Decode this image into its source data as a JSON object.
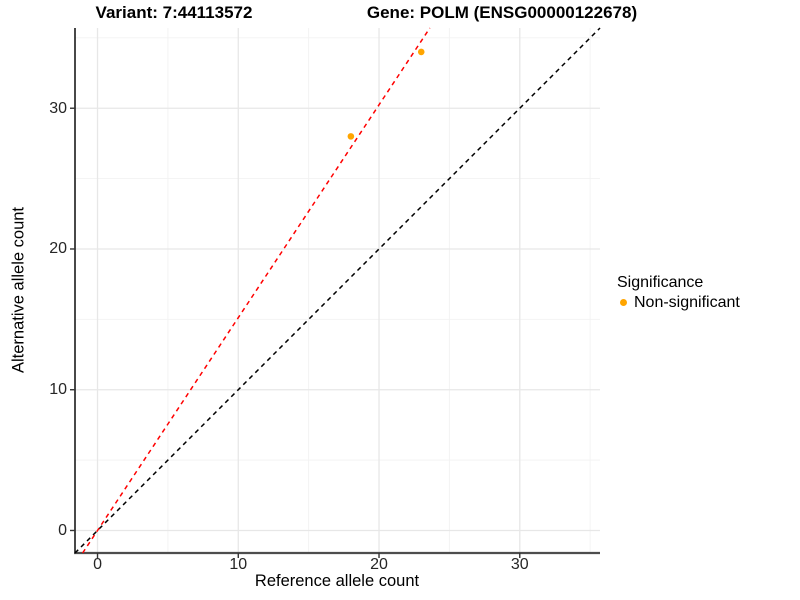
{
  "header": {
    "variant_title": "Variant: 7:44113572",
    "gene_title": "Gene: POLM (ENSG00000122678)"
  },
  "legend": {
    "title": "Significance",
    "items": [
      {
        "label": "Non-significant",
        "color": "#FFA500"
      }
    ]
  },
  "colors": {
    "point_orange": "#FFA500",
    "fit_line_red": "#FF0000",
    "identity_line_black": "#000000",
    "grid_major": "#e7e7e7",
    "grid_minor": "#f2f2f2",
    "axis_line_y": "#1a1a1a",
    "axis_line_x": "#4d4d4d",
    "tick_mark": "#333333"
  },
  "chart_data": {
    "type": "scatter",
    "xlabel": "Reference allele count",
    "ylabel": "Alternative allele count",
    "xlim": [
      -1.6,
      35.7
    ],
    "ylim": [
      -1.6,
      35.7
    ],
    "x_ticks": [
      0,
      10,
      20,
      30
    ],
    "y_ticks": [
      0,
      10,
      20,
      30
    ],
    "grid": "major+minor",
    "legend_position": "right",
    "series": [
      {
        "name": "Non-significant",
        "color": "#FFA500",
        "points": [
          [
            18,
            28
          ],
          [
            23,
            34
          ]
        ]
      }
    ],
    "reference_lines": [
      {
        "name": "identity",
        "slope": 1.0,
        "intercept": 0,
        "color": "#000000",
        "style": "dashed"
      },
      {
        "name": "allelic-ratio-fit",
        "slope": 1.512,
        "intercept": 0,
        "color": "#FF0000",
        "style": "dashed"
      }
    ]
  }
}
